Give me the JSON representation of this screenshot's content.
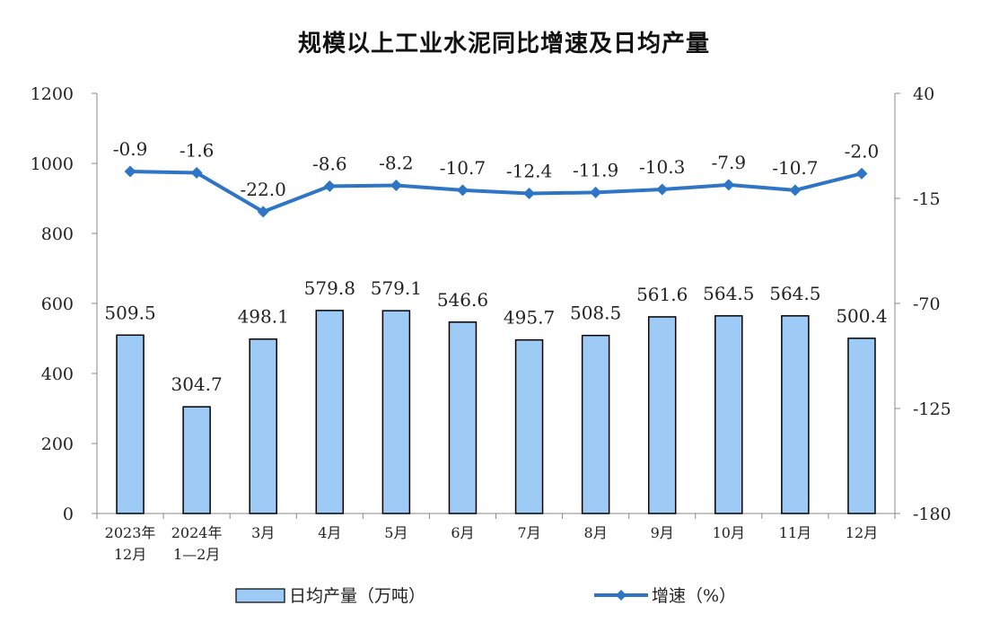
{
  "chart_data": {
    "type": "bar",
    "title": "规模以上工业水泥同比增速及日均产量",
    "categories": [
      [
        "2023年",
        "12月"
      ],
      [
        "2024年",
        "1—2月"
      ],
      [
        "3月"
      ],
      [
        "4月"
      ],
      [
        "5月"
      ],
      [
        "6月"
      ],
      [
        "7月"
      ],
      [
        "8月"
      ],
      [
        "9月"
      ],
      [
        "10月"
      ],
      [
        "11月"
      ],
      [
        "12月"
      ]
    ],
    "series": [
      {
        "name": "日均产量（万吨）",
        "type": "bar",
        "axis": "left",
        "color": "#9DCBF5",
        "values": [
          509.5,
          304.7,
          498.1,
          579.8,
          579.1,
          546.6,
          495.7,
          508.5,
          561.6,
          564.5,
          564.5,
          500.4
        ],
        "labels": [
          "509.5",
          "304.7",
          "498.1",
          "579.8",
          "579.1",
          "546.6",
          "495.7",
          "508.5",
          "561.6",
          "564.5",
          "564.5",
          "500.4"
        ]
      },
      {
        "name": "增速（%）",
        "type": "line",
        "axis": "right",
        "color": "#2E75C6",
        "values": [
          -0.9,
          -1.6,
          -22.0,
          -8.6,
          -8.2,
          -10.7,
          -12.4,
          -11.9,
          -10.3,
          -7.9,
          -10.7,
          -2.0
        ],
        "labels": [
          "-0.9",
          "-1.6",
          "-22.0",
          "-8.6",
          "-8.2",
          "-10.7",
          "-12.4",
          "-11.9",
          "-10.3",
          "-7.9",
          "-10.7",
          "-2.0"
        ]
      }
    ],
    "y_left": {
      "ylim": [
        0,
        1200
      ],
      "ticks": [
        "0",
        "200",
        "400",
        "600",
        "800",
        "1000",
        "1200"
      ]
    },
    "y_right": {
      "ylim": [
        -180,
        40
      ],
      "ticks": [
        "-180",
        "-125",
        "-70",
        "-15",
        "40"
      ]
    },
    "grid": false,
    "legend": "bottom"
  }
}
